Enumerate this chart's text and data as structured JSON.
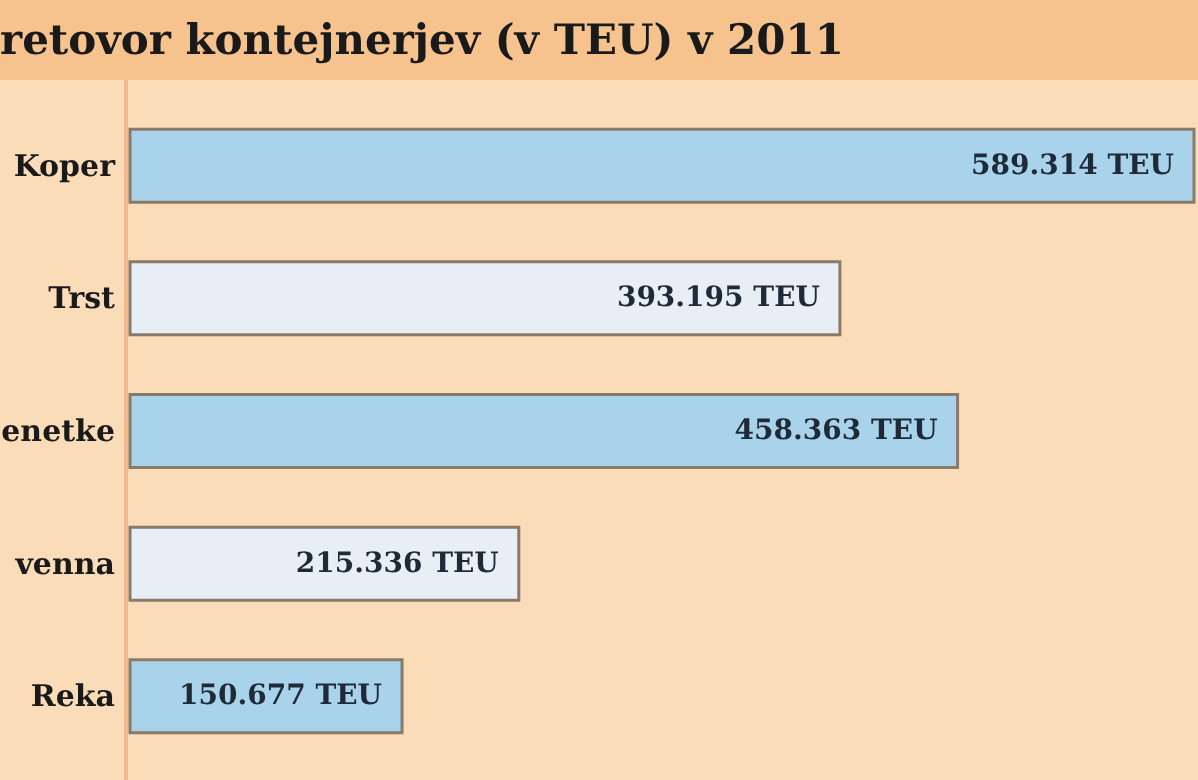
{
  "chart_data": {
    "type": "bar",
    "orientation": "horizontal",
    "title": "retovor kontejnerjev (v TEU) v 2011",
    "categories": [
      "Koper",
      "Trst",
      "enetke",
      "venna",
      "Reka"
    ],
    "values": [
      589314,
      393195,
      458363,
      215336,
      150677
    ],
    "colors": [
      "#a9d3ea",
      "#e8eef5",
      "#a9d3ea",
      "#e8eef5",
      "#a9d3ea"
    ],
    "value_labels": [
      "589.314 TEU",
      "393.195 TEU",
      "458.363 TEU",
      "215.336 TEU",
      "150.677 TEU"
    ]
  }
}
